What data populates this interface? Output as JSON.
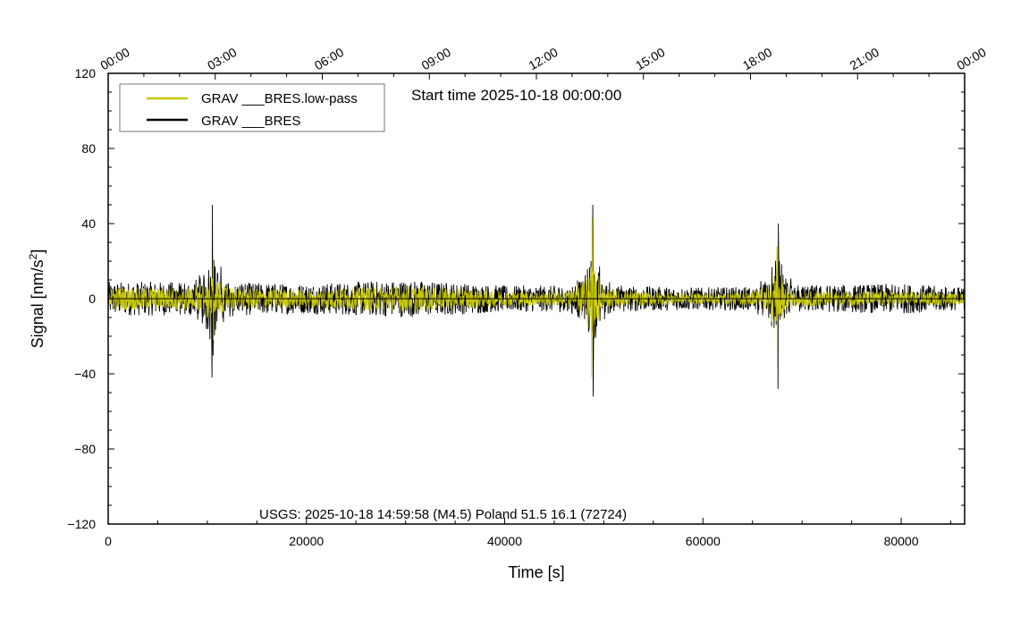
{
  "chart_data": {
    "type": "line",
    "title": "",
    "annotation_start": "Start time 2025-10-18 00:00:00",
    "annotation_event": "USGS: 2025-10-18 14:59:58 (M4.5) Poland 51.5 16.1 (72724)",
    "xlabel": "Time [s]",
    "ylabel_base": "Signal [nm/s",
    "ylabel_sup": "2",
    "ylabel_end": "]",
    "xlim": [
      0,
      86400
    ],
    "ylim": [
      -120,
      120
    ],
    "x_ticks": [
      0,
      20000,
      40000,
      60000,
      80000
    ],
    "x_tick_labels": [
      "0",
      "20000",
      "40000",
      "60000",
      "80000"
    ],
    "y_ticks": [
      -120,
      -80,
      -40,
      0,
      40,
      80,
      120
    ],
    "y_tick_labels": [
      "−120",
      "−80",
      "−40",
      "0",
      "40",
      "80",
      "120"
    ],
    "top_axis_ticks": [
      0,
      10800,
      21600,
      32400,
      43200,
      54000,
      64800,
      75600,
      86400
    ],
    "top_axis_labels": [
      "00:00",
      "03:00",
      "06:00",
      "09:00",
      "12:00",
      "15:00",
      "18:00",
      "21:00",
      "00:00"
    ],
    "legend_position": "top-left",
    "grid": false,
    "series": [
      {
        "name": "GRAV ___BRES.low-pass",
        "color": "#c8c800",
        "noise_level_x": [
          0,
          10000,
          20000,
          30000,
          40000,
          50000,
          60000,
          70000,
          80000,
          86400
        ],
        "noise_level_y": [
          6,
          6,
          5,
          7,
          4,
          4,
          3,
          4,
          4,
          3
        ],
        "events": [
          {
            "x": 10600,
            "peak_max": 20,
            "peak_min": -22
          },
          {
            "x": 48800,
            "peak_max": 43,
            "peak_min": -42
          },
          {
            "x": 67500,
            "peak_max": 28,
            "peak_min": -36
          }
        ]
      },
      {
        "name": "GRAV ___BRES",
        "color": "#000000",
        "noise_level_x": [
          0,
          10000,
          20000,
          30000,
          40000,
          50000,
          60000,
          70000,
          80000,
          86400
        ],
        "noise_level_y": [
          9,
          9,
          8,
          10,
          7,
          7,
          6,
          7,
          8,
          6
        ],
        "events": [
          {
            "x": 10500,
            "peak_max": 50,
            "peak_min": -42
          },
          {
            "x": 48900,
            "peak_max": 50,
            "peak_min": -52
          },
          {
            "x": 67600,
            "peak_max": 40,
            "peak_min": -48
          }
        ]
      }
    ]
  }
}
